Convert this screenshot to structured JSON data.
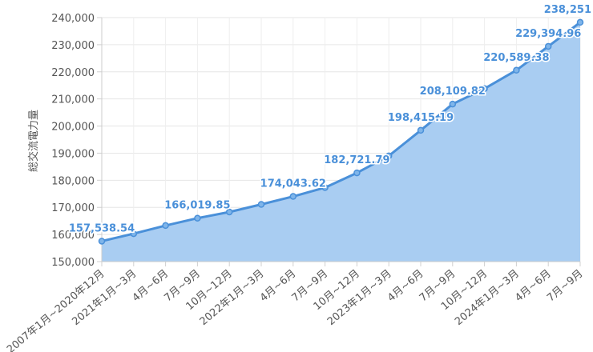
{
  "chart_data": {
    "type": "area",
    "ylabel": "総交流電力量",
    "xlabel": "",
    "title": "",
    "ylim": [
      150000,
      240000
    ],
    "yticks": [
      "150,000",
      "160,000",
      "170,000",
      "180,000",
      "190,000",
      "200,000",
      "210,000",
      "220,000",
      "230,000",
      "240,000"
    ],
    "categories": [
      "2007年1月~2020年12月",
      "2021年1月~3月",
      "4月~6月",
      "7月~9月",
      "10月~12月",
      "2022年1月~3月",
      "4月~6月",
      "7月~9月",
      "10月~12月",
      "2023年1月~3月",
      "4月~6月",
      "7月~9月",
      "10月~12月",
      "2024年1月~3月",
      "4月~6月",
      "7月~9月"
    ],
    "values": [
      157538.54,
      160300,
      163300,
      166019.85,
      168300,
      171100,
      174043.62,
      177300,
      182721.79,
      189000,
      198415.19,
      208109.82,
      213800,
      220589.38,
      229394.96,
      238251
    ],
    "data_labels": [
      {
        "index": 0,
        "text": "157,538.54"
      },
      {
        "index": 3,
        "text": "166,019.85"
      },
      {
        "index": 6,
        "text": "174,043.62"
      },
      {
        "index": 8,
        "text": "182,721.79"
      },
      {
        "index": 10,
        "text": "198,415.19"
      },
      {
        "index": 11,
        "text": "208,109.82"
      },
      {
        "index": 13,
        "text": "220,589.38"
      },
      {
        "index": 14,
        "text": "229,394.96"
      },
      {
        "index": 15,
        "text": "238,251"
      }
    ],
    "colors": {
      "line": "#4a90d9",
      "fill": "#a9cdf2",
      "label": "#4a90d9",
      "grid": "#e6e6e6"
    },
    "grid": true,
    "legend": "none"
  }
}
